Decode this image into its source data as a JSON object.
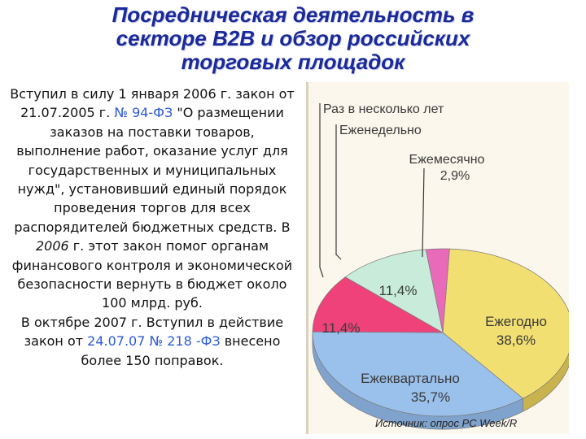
{
  "slide": {
    "title_lines": [
      "Посредническая деятельность в",
      "секторе B2B и обзор российских",
      "торговых площадок"
    ],
    "paragraph1": {
      "part1": "Вступил в силу 1 января 2006 г. закон от 21.07.2005 г.",
      "law_link": "№ 94-ФЗ",
      "part2": "\"О размещении заказов на поставки товаров, выполнение работ, оказание услуг для государственных и муниципальных нужд\", установивший единый порядок проведения торгов для всех распорядителей бюджетных средств. В",
      "year": "2006",
      "part3": "г. этот закон помог органам финансового контроля и экономической безопасности вернуть в бюджет около 100 млрд. руб."
    },
    "paragraph2": {
      "part1": "В октябре 2007 г. Вступил в действие закон от",
      "law_link": "24.07.07 № 218 -ФЗ",
      "part2": "внесено более 150 поправок."
    }
  },
  "chart_data": {
    "type": "pie",
    "slices": [
      {
        "label": "Ежегодно",
        "value": 38.6,
        "value_label": "38,6%",
        "color": "#f2df72"
      },
      {
        "label": "Ежеквартально",
        "value": 35.7,
        "value_label": "35,7%",
        "color": "#9ac0ec"
      },
      {
        "label": "",
        "value": 11.4,
        "value_label": "11,4%",
        "color": "#f0427a"
      },
      {
        "label": "",
        "value": 11.4,
        "value_label": "11,4%",
        "color": "#c8ecd9"
      },
      {
        "label": "Ежемесячно",
        "value": 2.9,
        "value_label": "2,9%",
        "color": "#e86ab8"
      },
      {
        "label": "Еженедельно",
        "value": 0,
        "value_label": "",
        "color": "#a8d8b8"
      },
      {
        "label": "Раз в несколько лет",
        "value": 0,
        "value_label": "",
        "color": "#e0e0e0"
      }
    ],
    "source": "Источник: опрос PC Week/R",
    "legend_placement": "callouts-left-top"
  }
}
